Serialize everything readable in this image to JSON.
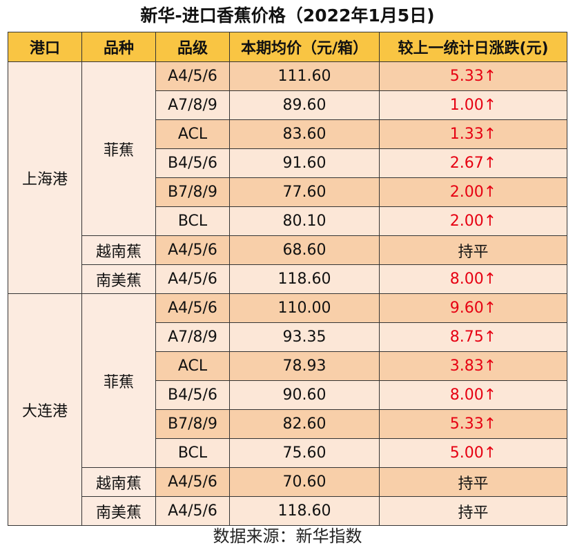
{
  "title": "新华-进口香蕉价格（2022年1月5日)",
  "header": {
    "port": "港口",
    "variety": "品种",
    "grade": "品级",
    "price": "本期均价（元/箱）",
    "change": "较上一统计日涨跌(元)"
  },
  "colors": {
    "header_bg": "#f9c543",
    "row_dark": "#f8cfa9",
    "row_light": "#fce7d7",
    "up": "#e60012"
  },
  "ports": [
    {
      "name": "上海港",
      "varieties": [
        {
          "name": "菲蕉",
          "rows": [
            {
              "grade": "A4/5/6",
              "price": "111.60",
              "change": "5.33↑"
            },
            {
              "grade": "A7/8/9",
              "price": "89.60",
              "change": "1.00↑"
            },
            {
              "grade": "ACL",
              "price": "83.60",
              "change": "1.33↑"
            },
            {
              "grade": "B4/5/6",
              "price": "91.60",
              "change": "2.67↑"
            },
            {
              "grade": "B7/8/9",
              "price": "77.60",
              "change": "2.00↑"
            },
            {
              "grade": "BCL",
              "price": "80.10",
              "change": "2.00↑"
            }
          ]
        },
        {
          "name": "越南蕉",
          "rows": [
            {
              "grade": "A4/5/6",
              "price": "68.60",
              "change": "持平"
            }
          ]
        },
        {
          "name": "南美蕉",
          "rows": [
            {
              "grade": "A4/5/6",
              "price": "118.60",
              "change": "8.00↑"
            }
          ]
        }
      ]
    },
    {
      "name": "大连港",
      "varieties": [
        {
          "name": "菲蕉",
          "rows": [
            {
              "grade": "A4/5/6",
              "price": "110.00",
              "change": "9.60↑"
            },
            {
              "grade": "A7/8/9",
              "price": "93.35",
              "change": "8.75↑"
            },
            {
              "grade": "ACL",
              "price": "78.93",
              "change": "3.83↑"
            },
            {
              "grade": "B4/5/6",
              "price": "90.60",
              "change": "8.00↑"
            },
            {
              "grade": "B7/8/9",
              "price": "82.60",
              "change": "5.33↑"
            },
            {
              "grade": "BCL",
              "price": "75.60",
              "change": "5.00↑"
            }
          ]
        },
        {
          "name": "越南蕉",
          "rows": [
            {
              "grade": "A4/5/6",
              "price": "70.60",
              "change": "持平"
            }
          ]
        },
        {
          "name": "南美蕉",
          "rows": [
            {
              "grade": "A4/5/6",
              "price": "118.60",
              "change": "持平"
            }
          ]
        }
      ]
    }
  ],
  "source": "数据来源：新华指数"
}
